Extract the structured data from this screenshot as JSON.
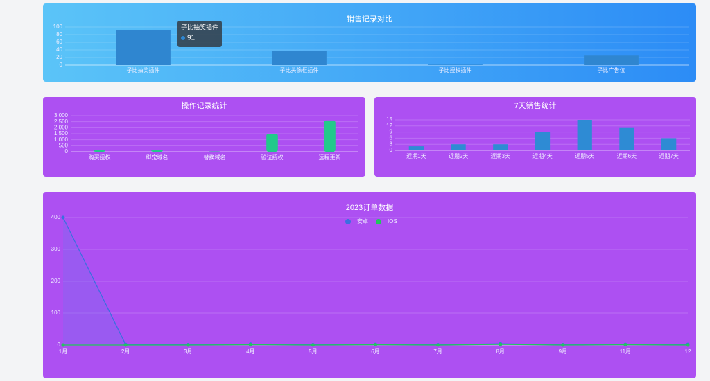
{
  "chart_data": [
    {
      "type": "bar",
      "title": "销售记录对比",
      "categories": [
        "子比抽奖插件",
        "子比头像框插件",
        "子比授权插件",
        "子比广告位"
      ],
      "values": [
        91,
        38,
        1,
        25
      ],
      "color": "#2f86d0",
      "ylim": [
        0,
        100
      ],
      "yticks": [
        0,
        20,
        40,
        60,
        80,
        100
      ],
      "grid": true,
      "tooltip": {
        "category": "子比抽奖插件",
        "value": 91
      }
    },
    {
      "type": "bar",
      "title": "操作记录统计",
      "categories": [
        "购买授权",
        "绑定域名",
        "替换域名",
        "验证授权",
        "远程更新"
      ],
      "values": [
        150,
        150,
        20,
        1500,
        2600
      ],
      "color": "#22c98a",
      "ylim": [
        0,
        3000
      ],
      "yticks": [
        0,
        500,
        {
          "value": 1000,
          "label": "1,000"
        },
        {
          "value": 1500,
          "label": "1,500"
        },
        {
          "value": 2000,
          "label": "2,000"
        },
        {
          "value": 2500,
          "label": "2,500"
        },
        {
          "value": 3000,
          "label": "3,000"
        }
      ],
      "grid": true
    },
    {
      "type": "bar",
      "title": "7天销售统计",
      "categories": [
        "近期1天",
        "近期2天",
        "近期3天",
        "近期4天",
        "近期5天",
        "近期6天",
        "近期7天"
      ],
      "values": [
        2,
        3,
        3,
        9,
        15,
        11,
        6
      ],
      "color": "#2e8bd4",
      "ylim": [
        0,
        15
      ],
      "yticks": [
        0,
        3,
        6,
        9,
        12,
        15
      ],
      "grid": true
    },
    {
      "type": "line",
      "title": "2023订单数据",
      "categories": [
        "1月",
        "2月",
        "3月",
        "4月",
        "5月",
        "6月",
        "7月",
        "8月",
        "9月",
        "11月",
        "12"
      ],
      "series": [
        {
          "name": "安卓",
          "color": "#3b6fe0",
          "values": [
            400,
            2,
            1,
            3,
            1,
            2,
            1,
            4,
            1,
            2,
            2
          ]
        },
        {
          "name": "IOS",
          "color": "#22c55e",
          "values": [
            0,
            0,
            0,
            1,
            0,
            1,
            0,
            2,
            0,
            1,
            0
          ]
        }
      ],
      "ylim": [
        0,
        400
      ],
      "yticks": [
        0,
        100,
        200,
        300,
        400
      ],
      "grid": true,
      "legend": "top"
    }
  ]
}
